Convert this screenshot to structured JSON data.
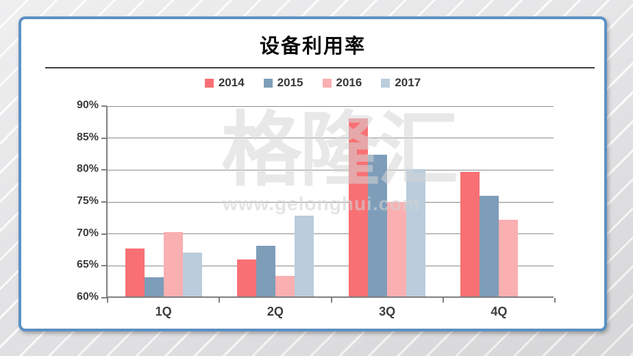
{
  "slide": {
    "title": "设备利用率",
    "watermark_line1": "格隆汇",
    "watermark_line2": "www.gelonghui.com"
  },
  "frame": {
    "card_border_color": "#5b91c5",
    "background_color": "#e2e2e4"
  },
  "chart_data": {
    "type": "bar",
    "title": "设备利用率",
    "categories": [
      "1Q",
      "2Q",
      "3Q",
      "4Q"
    ],
    "series": [
      {
        "name": "2014",
        "color": "#f87074",
        "values": [
          67.5,
          65.8,
          87.9,
          79.5
        ]
      },
      {
        "name": "2015",
        "color": "#7e9db9",
        "values": [
          63.0,
          67.9,
          82.2,
          75.8
        ]
      },
      {
        "name": "2016",
        "color": "#faafb1",
        "values": [
          70.1,
          63.2,
          74.8,
          72.0
        ]
      },
      {
        "name": "2017",
        "color": "#b9cddd",
        "values": [
          66.9,
          72.6,
          79.9,
          null
        ]
      }
    ],
    "xlabel": "",
    "ylabel": "",
    "ylim": [
      60,
      90
    ],
    "ytick_step": 5,
    "ytick_labels": [
      "60%",
      "65%",
      "70%",
      "75%",
      "80%",
      "85%",
      "90%"
    ],
    "grid": true,
    "legend_position": "top",
    "axis_color": "#7f7f7f",
    "gridline_color": "#8c8c8c"
  }
}
